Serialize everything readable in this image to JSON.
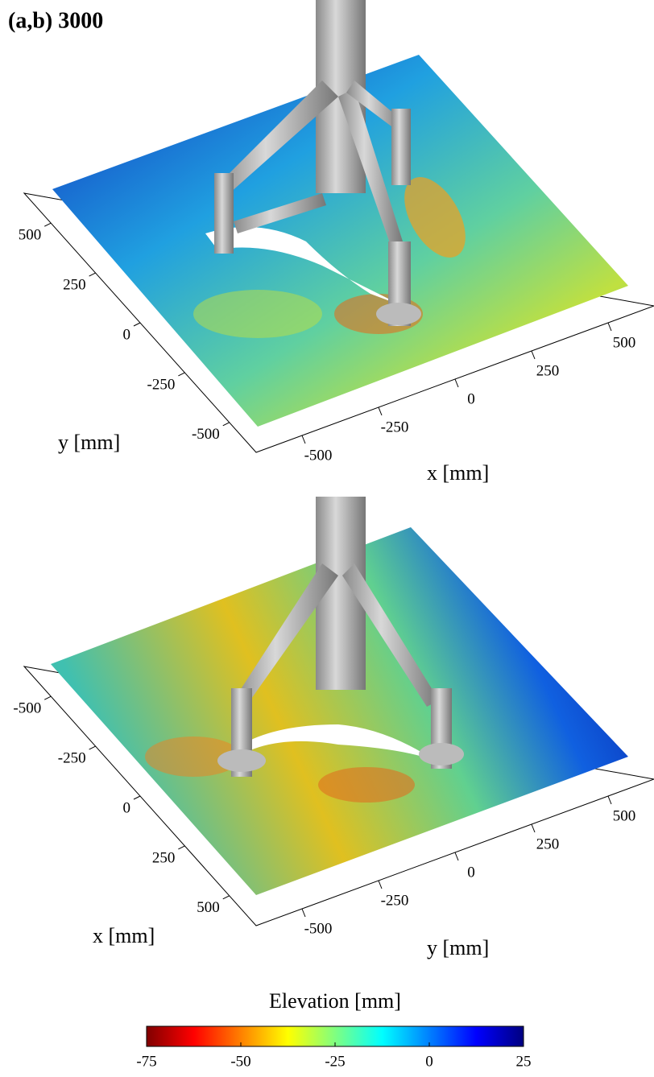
{
  "title": "(a,b) 3000",
  "panels": [
    {
      "left_axis": {
        "label": "y [mm]",
        "lim": [
          650,
          -650
        ],
        "ticks": [
          500,
          250,
          0,
          -250,
          -500
        ]
      },
      "bottom_axis": {
        "label": "x [mm]",
        "lim": [
          -650,
          650
        ],
        "ticks": [
          -500,
          -250,
          0,
          250,
          500
        ]
      }
    },
    {
      "left_axis": {
        "label": "x [mm]",
        "lim": [
          -650,
          650
        ],
        "ticks": [
          -500,
          -250,
          0,
          250,
          500
        ]
      },
      "bottom_axis": {
        "label": "y [mm]",
        "lim": [
          -650,
          650
        ],
        "ticks": [
          -500,
          -250,
          0,
          250,
          500
        ]
      }
    }
  ],
  "colorbar": {
    "label": "Elevation [mm]",
    "lim": [
      -75,
      25
    ],
    "ticks": [
      -75,
      -50,
      -25,
      0,
      25
    ],
    "colors": [
      "#800000",
      "#ff0000",
      "#ff8000",
      "#ffff00",
      "#80ff80",
      "#00ffff",
      "#0080ff",
      "#0000ff",
      "#000080"
    ]
  }
}
